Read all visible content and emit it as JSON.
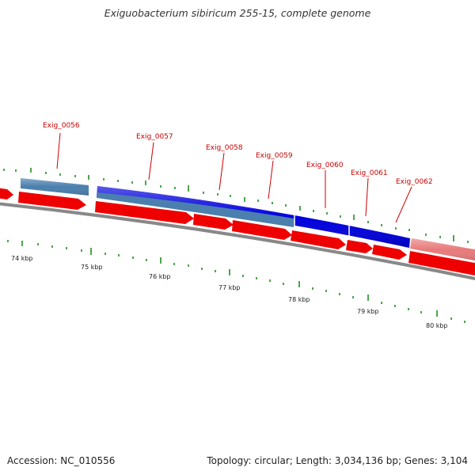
{
  "title": "Exiguobacterium sibiricum 255-15, complete genome",
  "footer": {
    "accession": "Accession: NC_010556",
    "summary": "Topology: circular; Length: 3,034,136 bp; Genes: 3,104"
  },
  "scale_labels": [
    "74 kbp",
    "75 kbp",
    "76 kbp",
    "77 kbp",
    "78 kbp",
    "79 kbp",
    "80 kbp"
  ],
  "gene_labels": [
    "Exig_0056",
    "Exig_0057",
    "Exig_0058",
    "Exig_0059",
    "Exig_0060",
    "Exig_0061",
    "Exig_0062"
  ],
  "colors": {
    "forward_gene": "#ee0000",
    "feature_blue": "#0000dd",
    "feature_steel": "#4a7fae",
    "feature_pink": "#e87b7b",
    "backbone": "#888888",
    "tick": "#118811",
    "label": "#cc0000"
  }
}
